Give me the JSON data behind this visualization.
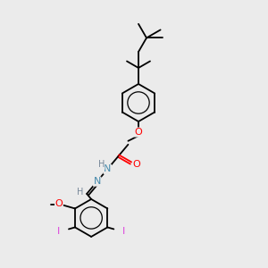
{
  "bg_color": "#ebebeb",
  "bond_color": "#000000",
  "atom_colors": {
    "O": "#ff0000",
    "N": "#4488aa",
    "I": "#dd44dd",
    "H": "#778899",
    "C": "#000000"
  },
  "fig_width": 3.0,
  "fig_height": 3.0,
  "dpi": 100
}
